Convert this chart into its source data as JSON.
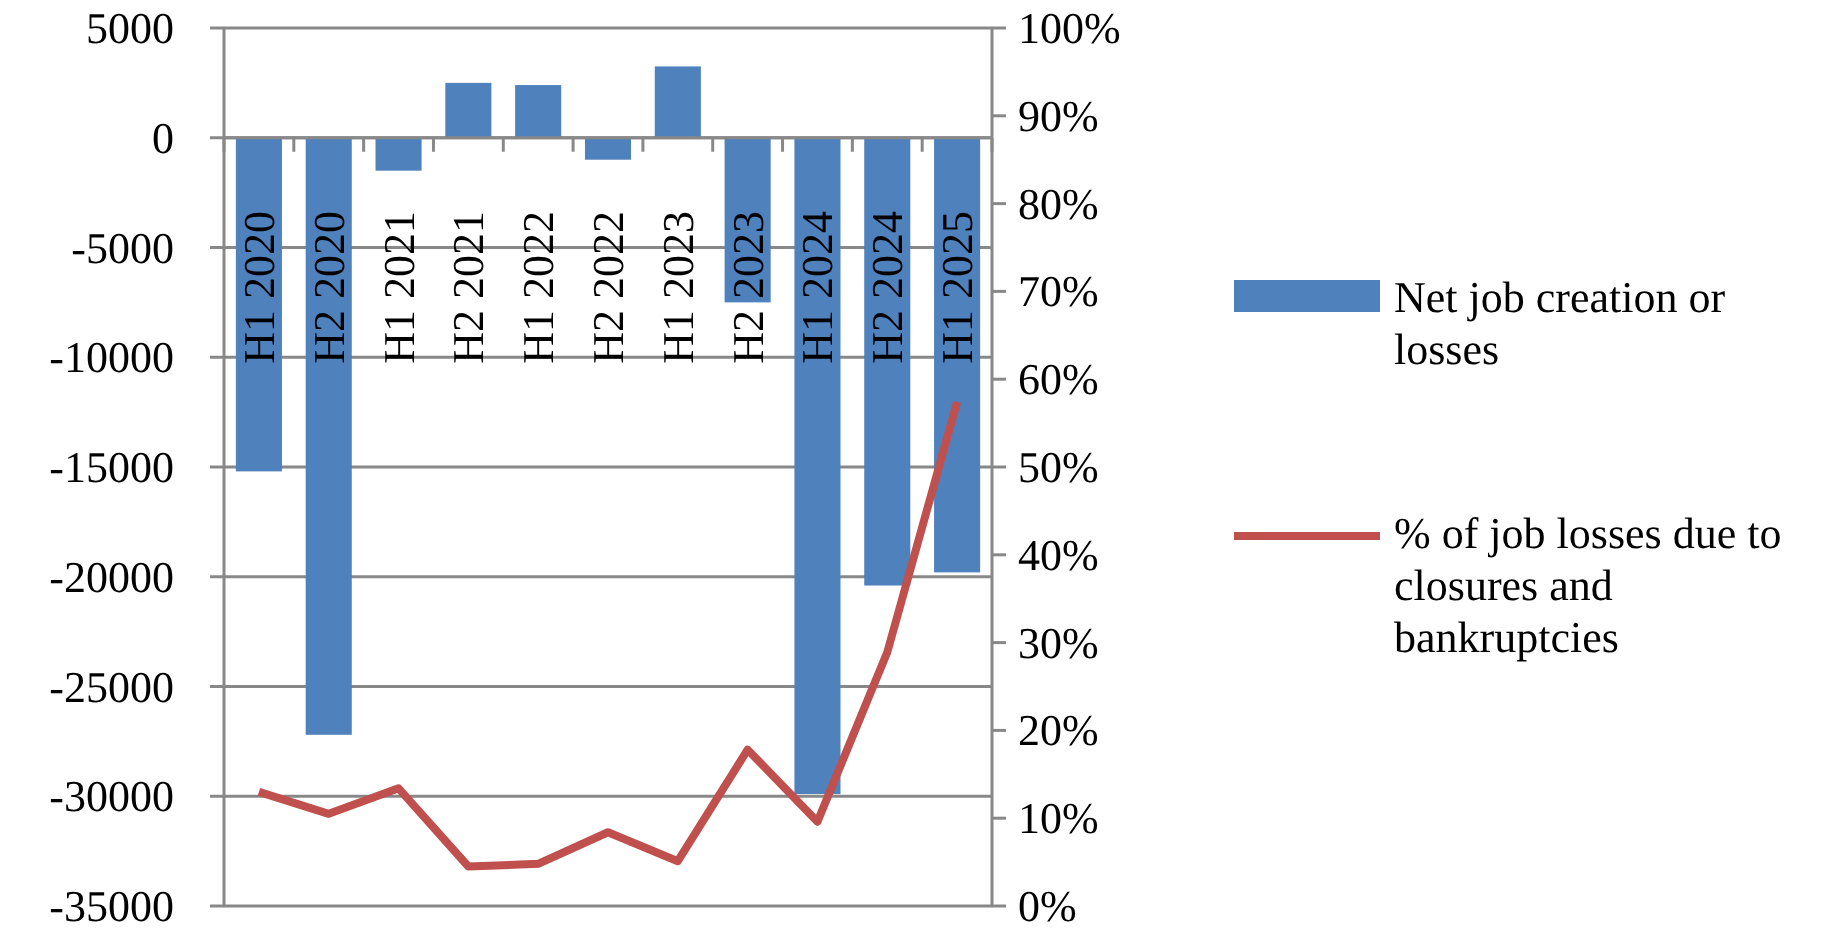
{
  "chart_data": {
    "type": "bar",
    "categories": [
      "H1 2020",
      "H2 2020",
      "H1 2021",
      "H2 2021",
      "H1 2022",
      "H2 2022",
      "H1 2023",
      "H2 2023",
      "H1 2024",
      "H2 2024",
      "H1 2025"
    ],
    "series": [
      {
        "name": "Net job creation or losses",
        "color": "#4f81bd",
        "values": [
          -15200,
          -27200,
          -1500,
          2500,
          2400,
          -1000,
          3250,
          -7500,
          -29900,
          -20400,
          -19800
        ]
      },
      {
        "name": "% of job losses due to closures and bankruptcies",
        "type": "line",
        "axis": "y2",
        "color": "#c0504d",
        "values": [
          13.0,
          10.5,
          13.4,
          4.5,
          4.8,
          8.4,
          5.1,
          17.8,
          9.6,
          28.9,
          57.4
        ]
      }
    ],
    "ylim": [
      -35000,
      5000
    ],
    "yticks": [
      -35000,
      -30000,
      -25000,
      -20000,
      -15000,
      -10000,
      -5000,
      0,
      5000
    ],
    "y2lim": [
      0,
      100
    ],
    "y2ticks": [
      {
        "value": 0,
        "label": "0%"
      },
      {
        "value": 10,
        "label": "10%"
      },
      {
        "value": 20,
        "label": "20%"
      },
      {
        "value": 30,
        "label": "30%"
      },
      {
        "value": 40,
        "label": "40%"
      },
      {
        "value": 50,
        "label": "50%"
      },
      {
        "value": 60,
        "label": "60%"
      },
      {
        "value": 70,
        "label": "70%"
      },
      {
        "value": 80,
        "label": "80%"
      },
      {
        "value": 90,
        "label": "90%"
      },
      {
        "value": 100,
        "label": "100%"
      }
    ],
    "grid": "y",
    "legend": "right"
  }
}
